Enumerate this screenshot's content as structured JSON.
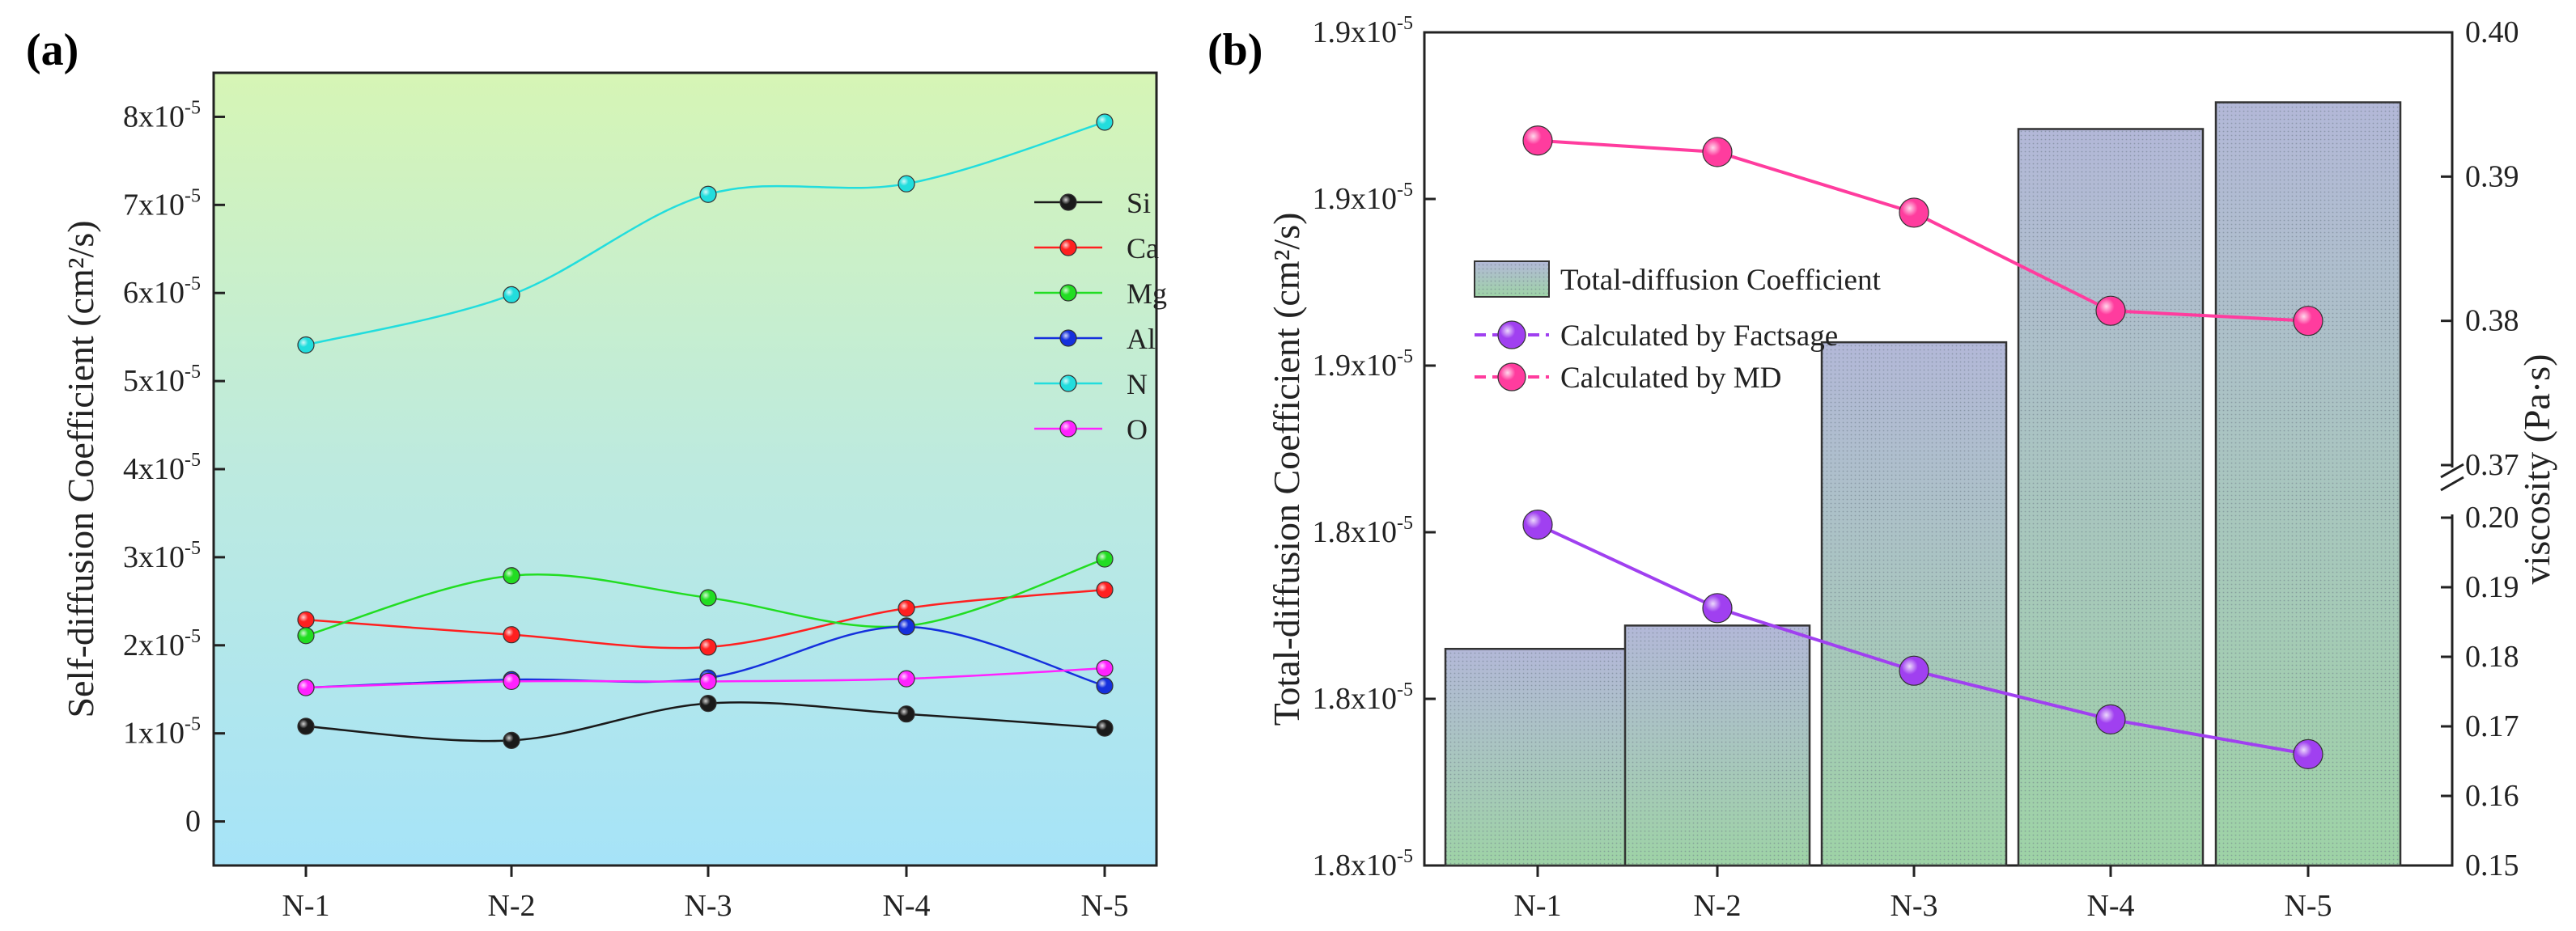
{
  "chart_data": [
    {
      "panel": "(a)",
      "type": "line",
      "categories": [
        "N-1",
        "N-2",
        "N-3",
        "N-4",
        "N-5"
      ],
      "ylabel": "Self-diffusion Coefficient (cm²/s)",
      "ylim": [
        -5e-06,
        8.5e-05
      ],
      "yticks": [
        {
          "v": 0,
          "label": "0",
          "exp": ""
        },
        {
          "v": 1e-05,
          "label": "1x10",
          "exp": "-5"
        },
        {
          "v": 2e-05,
          "label": "2x10",
          "exp": "-5"
        },
        {
          "v": 3e-05,
          "label": "3x10",
          "exp": "-5"
        },
        {
          "v": 4e-05,
          "label": "4x10",
          "exp": "-5"
        },
        {
          "v": 5e-05,
          "label": "5x10",
          "exp": "-5"
        },
        {
          "v": 6e-05,
          "label": "6x10",
          "exp": "-5"
        },
        {
          "v": 7e-05,
          "label": "7x10",
          "exp": "-5"
        },
        {
          "v": 8e-05,
          "label": "8x10",
          "exp": "-5"
        }
      ],
      "legend_position": "top-right",
      "series": [
        {
          "name": "Si",
          "color": "#1a1a1a",
          "values": [
            1.08e-05,
            9.2e-06,
            1.34e-05,
            1.22e-05,
            1.06e-05
          ]
        },
        {
          "name": "Ca",
          "color": "#ff2020",
          "values": [
            2.29e-05,
            2.12e-05,
            1.98e-05,
            2.42e-05,
            2.63e-05
          ]
        },
        {
          "name": "Mg",
          "color": "#22dd22",
          "values": [
            2.11e-05,
            2.79e-05,
            2.54e-05,
            2.22e-05,
            2.98e-05
          ]
        },
        {
          "name": "Al",
          "color": "#1530dd",
          "values": [
            1.52e-05,
            1.61e-05,
            1.63e-05,
            2.21e-05,
            1.54e-05
          ]
        },
        {
          "name": "N",
          "color": "#22dddd",
          "values": [
            5.41e-05,
            5.98e-05,
            7.12e-05,
            7.24e-05,
            7.94e-05
          ]
        },
        {
          "name": "O",
          "color": "#ff22ff",
          "values": [
            1.52e-05,
            1.59e-05,
            1.59e-05,
            1.62e-05,
            1.74e-05
          ]
        }
      ]
    },
    {
      "panel": "(b)",
      "type": "bar",
      "categories": [
        "N-1",
        "N-2",
        "N-3",
        "N-4",
        "N-5"
      ],
      "ylabel": "Total-diffusion Coefficient (cm²/s)",
      "ylabel_right": "viscosity (Pa·s)",
      "ylim_units": [
        0,
        5
      ],
      "yticks_left": [
        {
          "u": 0,
          "label": "1.8x10",
          "exp": "-5"
        },
        {
          "u": 1,
          "label": "1.8x10",
          "exp": "-5"
        },
        {
          "u": 2,
          "label": "1.8x10",
          "exp": "-5"
        },
        {
          "u": 3,
          "label": "1.9x10",
          "exp": "-5"
        },
        {
          "u": 4,
          "label": "1.9x10",
          "exp": "-5"
        },
        {
          "u": 5,
          "label": "1.9x10",
          "exp": "-5"
        }
      ],
      "yticks_right_lower": [
        "0.15",
        "0.16",
        "0.17",
        "0.18",
        "0.19",
        "0.20"
      ],
      "yticks_right_upper": [
        "0.37",
        "0.38",
        "0.39",
        "0.40"
      ],
      "right_axis_break": "0.20 / 0.37",
      "bar_series": {
        "name": "Total-diffusion Coefficient",
        "values_units": [
          1.3,
          1.44,
          3.14,
          4.42,
          4.58
        ]
      },
      "line_series": [
        {
          "name": "Calculated by Factsage",
          "color": "#a040f0",
          "values": [
            0.199,
            0.187,
            0.178,
            0.171,
            0.166
          ]
        },
        {
          "name": "Calculated by MD",
          "color": "#ff3c9e",
          "values": [
            0.3925,
            0.3917,
            0.3875,
            0.3807,
            0.38
          ]
        }
      ],
      "legend_position": "top-left"
    }
  ]
}
